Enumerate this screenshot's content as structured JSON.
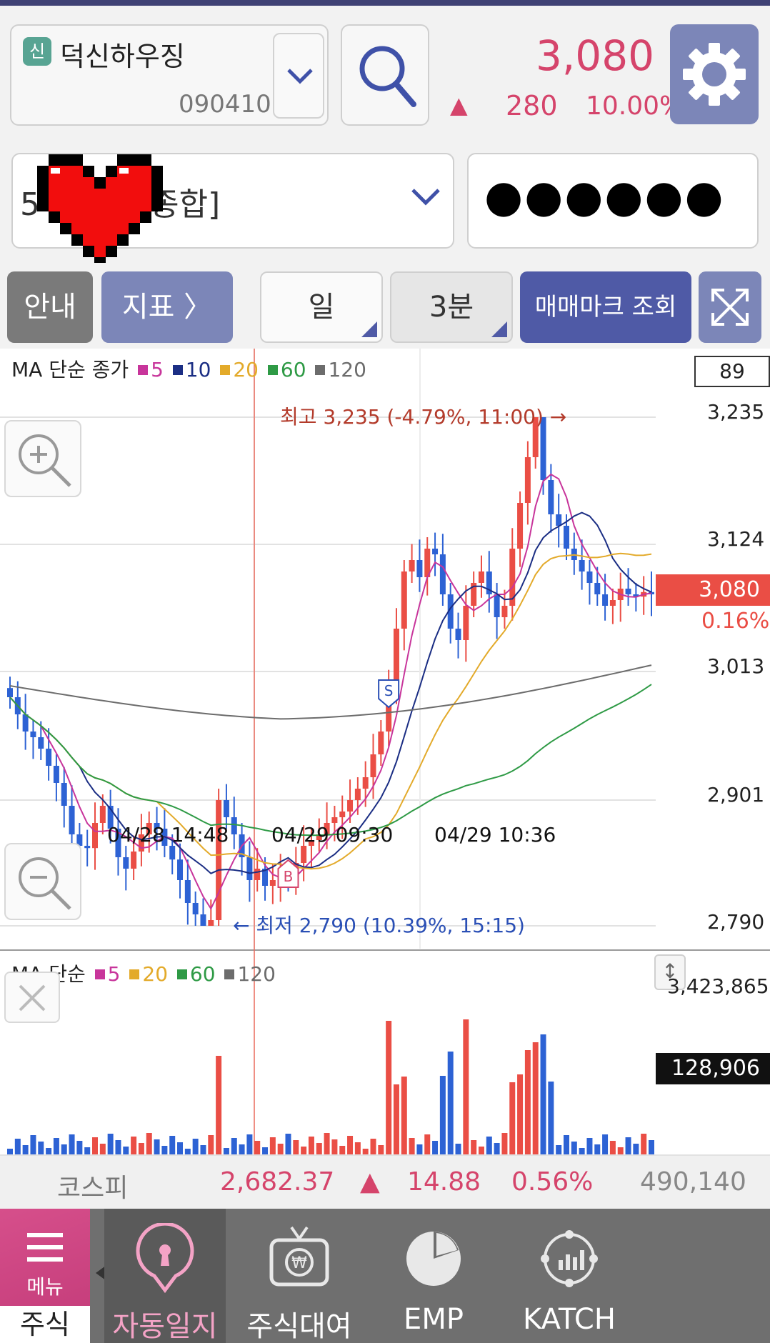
{
  "header": {
    "badge": "신",
    "stock_name": "덕신하우징",
    "stock_code": "090410",
    "price": "3,080",
    "change_arrow": "▲",
    "change": "280",
    "change_pct": "10.00%",
    "icons": [
      "chevron-down-icon",
      "search-icon",
      "gear-icon"
    ]
  },
  "account": {
    "name": "5          5 [위탁종합]",
    "password": "●●●●●●",
    "overlay": "pixel-heart"
  },
  "toolbar": {
    "guide": "안내",
    "indicator": "지표 〉",
    "period": "일",
    "interval": "3분",
    "trade_mark": "매매마크 조회"
  },
  "price_chart": {
    "legend_title": "MA 단순 종가",
    "ma_periods": [
      "5",
      "10",
      "20",
      "60",
      "120"
    ],
    "ma_colors": [
      "#c8359b",
      "#1b2e84",
      "#e3aa2a",
      "#2e9a45",
      "#6c6c6c"
    ],
    "count": "89",
    "y_labels": [
      "3,235",
      "3,124",
      "3,013",
      "2,901",
      "2,790"
    ],
    "current_price": "3,080",
    "current_pct": "0.16%",
    "x_labels": [
      "04/28 14:48",
      "04/29 09:30",
      "04/29 10:36"
    ],
    "high_annotation": "최고 3,235 (-4.79%, 11:00) →",
    "low_annotation": "← 최저 2,790 (10.39%, 15:15)",
    "markers": [
      "S",
      "B"
    ],
    "up_color": "#ea4e45",
    "down_color": "#2d62d4"
  },
  "volume_chart": {
    "legend_title": "MA 단순",
    "ma_periods": [
      "5",
      "20",
      "60",
      "120"
    ],
    "ma_colors": [
      "#c8359b",
      "#e3aa2a",
      "#2e9a45",
      "#6c6c6c"
    ],
    "max": "3,423,865",
    "current": "128,906"
  },
  "chart_data": {
    "type": "candlestick",
    "ylim": [
      2790,
      3235
    ],
    "y_ticks": [
      3235,
      3124,
      3013,
      2901,
      2790
    ],
    "x_tick_labels": [
      "04/28 14:48",
      "04/29 09:30",
      "04/29 10:36"
    ],
    "high": 3235,
    "low": 2790,
    "last": 3080,
    "volume_max": 3423865,
    "volume_last": 128906
  },
  "index_bar": {
    "name": "코스피",
    "value": "2,682.37",
    "arrow": "▲",
    "change": "14.88",
    "pct": "0.56%",
    "volume": "490,140"
  },
  "nav": {
    "menu": "메뉴",
    "stock": "주식",
    "items": [
      "자동일지",
      "주식대여",
      "EMP",
      "KATCH"
    ]
  }
}
